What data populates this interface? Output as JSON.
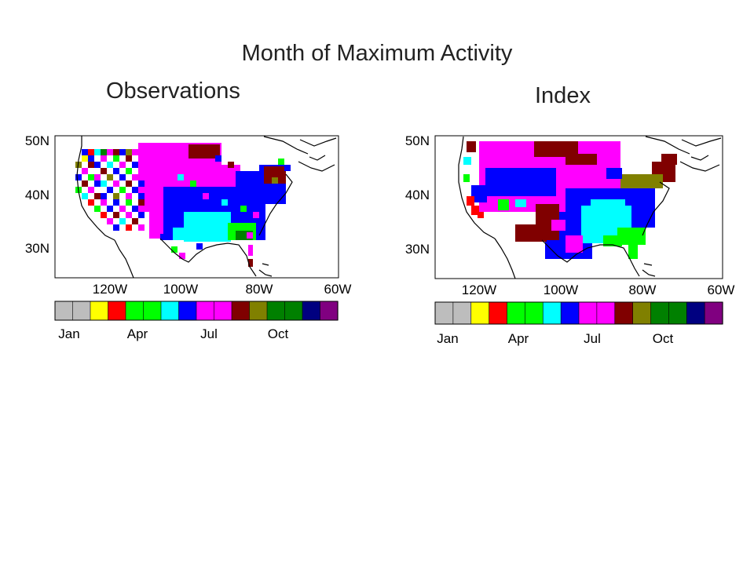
{
  "title": "Month of Maximum Activity",
  "panels": [
    {
      "subtitle": "Observations",
      "lat_labels": [
        "50N",
        "40N",
        "30N"
      ],
      "lon_labels": [
        "120W",
        "100W",
        "80W",
        "60W"
      ],
      "colorbar_labels": [
        "Jan",
        "Apr",
        "Jul",
        "Oct"
      ]
    },
    {
      "subtitle": "Index",
      "lat_labels": [
        "50N",
        "40N",
        "30N"
      ],
      "lon_labels": [
        "120W",
        "100W",
        "80W",
        "60W"
      ],
      "colorbar_labels": [
        "Jan",
        "Apr",
        "Jul",
        "Oct"
      ]
    }
  ],
  "colorbar_colors": [
    "#bdbdbd",
    "#bdbdbd",
    "#ffff00",
    "#ff0000",
    "#00ff00",
    "#00ff00",
    "#00ffff",
    "#0000ff",
    "#ff00ff",
    "#ff00ff",
    "#800000",
    "#808000",
    "#008000",
    "#008000",
    "#000080",
    "#800080"
  ]
}
